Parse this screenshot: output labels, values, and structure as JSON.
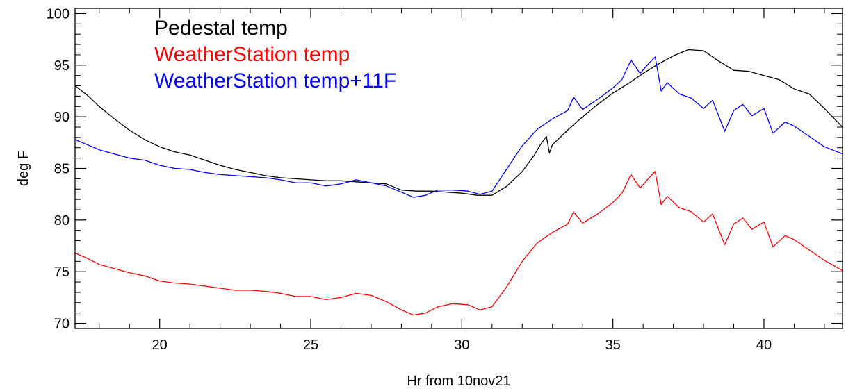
{
  "chart_data": {
    "type": "line",
    "title": "",
    "xlabel": "Hr from 10nov21",
    "ylabel": "deg F",
    "xlim": [
      17.2,
      42.6
    ],
    "ylim": [
      69.5,
      100.5
    ],
    "x_major_ticks": [
      20,
      25,
      30,
      35,
      40
    ],
    "x_tick_labels": [
      "20",
      "25",
      "30",
      "35",
      "40"
    ],
    "y_major_ticks": [
      70,
      75,
      80,
      85,
      90,
      95,
      100
    ],
    "y_tick_labels": [
      "70",
      "75",
      "80",
      "85",
      "90",
      "95",
      "100"
    ],
    "grid": false,
    "legend_position": "top-left",
    "series": [
      {
        "name": "Pedestal temp",
        "color": "#000000",
        "points": [
          [
            17.2,
            93.0
          ],
          [
            17.6,
            92.1
          ],
          [
            18.0,
            91.0
          ],
          [
            18.5,
            89.8
          ],
          [
            19.0,
            88.7
          ],
          [
            19.5,
            87.8
          ],
          [
            20.0,
            87.1
          ],
          [
            20.5,
            86.6
          ],
          [
            21.0,
            86.3
          ],
          [
            21.5,
            85.8
          ],
          [
            22.0,
            85.3
          ],
          [
            22.5,
            84.9
          ],
          [
            23.0,
            84.6
          ],
          [
            23.5,
            84.3
          ],
          [
            24.0,
            84.1
          ],
          [
            24.5,
            84.0
          ],
          [
            25.0,
            83.9
          ],
          [
            25.5,
            83.8
          ],
          [
            26.0,
            83.8
          ],
          [
            26.5,
            83.7
          ],
          [
            27.0,
            83.6
          ],
          [
            27.5,
            83.5
          ],
          [
            28.0,
            82.9
          ],
          [
            28.5,
            82.8
          ],
          [
            29.0,
            82.8
          ],
          [
            29.5,
            82.7
          ],
          [
            30.0,
            82.6
          ],
          [
            30.5,
            82.4
          ],
          [
            31.0,
            82.4
          ],
          [
            31.5,
            83.3
          ],
          [
            32.0,
            84.7
          ],
          [
            32.4,
            86.3
          ],
          [
            32.6,
            87.3
          ],
          [
            32.8,
            88.1
          ],
          [
            32.9,
            86.5
          ],
          [
            33.0,
            87.3
          ],
          [
            33.5,
            88.7
          ],
          [
            34.0,
            90.0
          ],
          [
            34.5,
            91.2
          ],
          [
            35.0,
            92.3
          ],
          [
            35.5,
            93.2
          ],
          [
            36.0,
            94.2
          ],
          [
            36.5,
            95.1
          ],
          [
            37.0,
            95.9
          ],
          [
            37.5,
            96.5
          ],
          [
            38.0,
            96.4
          ],
          [
            38.5,
            95.4
          ],
          [
            39.0,
            94.5
          ],
          [
            39.5,
            94.4
          ],
          [
            40.0,
            94.0
          ],
          [
            40.5,
            93.6
          ],
          [
            41.0,
            92.7
          ],
          [
            41.5,
            92.2
          ],
          [
            42.0,
            90.8
          ],
          [
            42.6,
            89.0
          ]
        ]
      },
      {
        "name": "WeatherStation temp",
        "color": "#ff0000",
        "points": [
          [
            17.2,
            76.8
          ],
          [
            17.6,
            76.3
          ],
          [
            18.0,
            75.7
          ],
          [
            18.5,
            75.3
          ],
          [
            19.0,
            74.9
          ],
          [
            19.5,
            74.6
          ],
          [
            20.0,
            74.1
          ],
          [
            20.5,
            73.9
          ],
          [
            21.0,
            73.8
          ],
          [
            21.5,
            73.6
          ],
          [
            22.0,
            73.4
          ],
          [
            22.5,
            73.2
          ],
          [
            23.0,
            73.2
          ],
          [
            23.5,
            73.1
          ],
          [
            24.0,
            72.9
          ],
          [
            24.5,
            72.6
          ],
          [
            25.0,
            72.6
          ],
          [
            25.5,
            72.3
          ],
          [
            26.0,
            72.5
          ],
          [
            26.5,
            72.9
          ],
          [
            27.0,
            72.7
          ],
          [
            27.5,
            72.1
          ],
          [
            28.0,
            71.3
          ],
          [
            28.4,
            70.8
          ],
          [
            28.8,
            71.0
          ],
          [
            29.2,
            71.6
          ],
          [
            29.7,
            71.9
          ],
          [
            30.2,
            71.8
          ],
          [
            30.6,
            71.3
          ],
          [
            31.0,
            71.6
          ],
          [
            31.5,
            73.6
          ],
          [
            32.0,
            76.0
          ],
          [
            32.5,
            77.8
          ],
          [
            33.0,
            78.8
          ],
          [
            33.5,
            79.6
          ],
          [
            33.7,
            80.8
          ],
          [
            34.0,
            79.7
          ],
          [
            34.5,
            80.6
          ],
          [
            35.0,
            81.7
          ],
          [
            35.3,
            82.6
          ],
          [
            35.6,
            84.4
          ],
          [
            35.9,
            83.1
          ],
          [
            36.2,
            84.1
          ],
          [
            36.4,
            84.7
          ],
          [
            36.6,
            81.5
          ],
          [
            36.8,
            82.3
          ],
          [
            37.2,
            81.2
          ],
          [
            37.6,
            80.8
          ],
          [
            38.0,
            79.8
          ],
          [
            38.3,
            80.6
          ],
          [
            38.7,
            77.6
          ],
          [
            39.0,
            79.6
          ],
          [
            39.3,
            80.2
          ],
          [
            39.6,
            79.1
          ],
          [
            40.0,
            79.8
          ],
          [
            40.3,
            77.4
          ],
          [
            40.7,
            78.5
          ],
          [
            41.0,
            78.1
          ],
          [
            41.5,
            77.1
          ],
          [
            42.0,
            76.1
          ],
          [
            42.6,
            75.1
          ]
        ]
      },
      {
        "name": "WeatherStation temp+11F",
        "color": "#0000ff",
        "points": [
          [
            17.2,
            87.8
          ],
          [
            17.6,
            87.3
          ],
          [
            18.0,
            86.8
          ],
          [
            18.5,
            86.4
          ],
          [
            19.0,
            86.0
          ],
          [
            19.5,
            85.8
          ],
          [
            20.0,
            85.3
          ],
          [
            20.5,
            85.0
          ],
          [
            21.0,
            84.9
          ],
          [
            21.5,
            84.6
          ],
          [
            22.0,
            84.4
          ],
          [
            22.5,
            84.3
          ],
          [
            23.0,
            84.2
          ],
          [
            23.5,
            84.1
          ],
          [
            24.0,
            83.9
          ],
          [
            24.5,
            83.6
          ],
          [
            25.0,
            83.6
          ],
          [
            25.5,
            83.3
          ],
          [
            26.0,
            83.5
          ],
          [
            26.5,
            83.9
          ],
          [
            27.0,
            83.6
          ],
          [
            27.5,
            83.3
          ],
          [
            28.0,
            82.7
          ],
          [
            28.4,
            82.2
          ],
          [
            28.8,
            82.4
          ],
          [
            29.2,
            82.9
          ],
          [
            29.7,
            82.9
          ],
          [
            30.2,
            82.8
          ],
          [
            30.6,
            82.5
          ],
          [
            31.0,
            82.8
          ],
          [
            31.5,
            85.0
          ],
          [
            32.0,
            87.2
          ],
          [
            32.5,
            88.8
          ],
          [
            33.0,
            89.8
          ],
          [
            33.5,
            90.6
          ],
          [
            33.7,
            91.9
          ],
          [
            34.0,
            90.7
          ],
          [
            34.5,
            91.7
          ],
          [
            35.0,
            92.8
          ],
          [
            35.3,
            93.6
          ],
          [
            35.6,
            95.5
          ],
          [
            35.9,
            94.2
          ],
          [
            36.2,
            95.2
          ],
          [
            36.4,
            95.8
          ],
          [
            36.6,
            92.5
          ],
          [
            36.8,
            93.3
          ],
          [
            37.2,
            92.2
          ],
          [
            37.6,
            91.8
          ],
          [
            38.0,
            90.8
          ],
          [
            38.3,
            91.6
          ],
          [
            38.7,
            88.6
          ],
          [
            39.0,
            90.6
          ],
          [
            39.3,
            91.2
          ],
          [
            39.6,
            90.1
          ],
          [
            40.0,
            90.8
          ],
          [
            40.3,
            88.4
          ],
          [
            40.7,
            89.5
          ],
          [
            41.0,
            89.1
          ],
          [
            41.5,
            88.1
          ],
          [
            42.0,
            87.1
          ],
          [
            42.6,
            86.4
          ]
        ]
      }
    ]
  }
}
